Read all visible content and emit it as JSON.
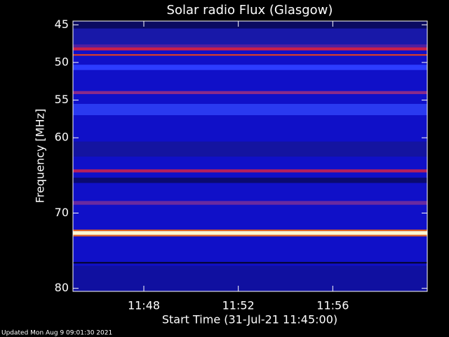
{
  "chart_data": {
    "type": "spectrogram",
    "title": "Solar radio Flux (Glasgow)",
    "ylabel": "Frequency [MHz]",
    "xlabel": "Start Time (31-Jul-21 11:45:00)",
    "footnote": "Updated Mon Aug  9 09:01:30 2021",
    "background_color": "#1010c8",
    "xlim": [
      0,
      15
    ],
    "xticks": [
      {
        "value": 3,
        "label": "11:48"
      },
      {
        "value": 7,
        "label": "11:52"
      },
      {
        "value": 11,
        "label": "11:56"
      }
    ],
    "ylim": [
      44.5,
      80.4
    ],
    "yticks": [
      45,
      50,
      55,
      60,
      70,
      80
    ],
    "bands": [
      {
        "low": 44.5,
        "high": 45.5,
        "color": "#0a0a60"
      },
      {
        "low": 45.5,
        "high": 47.6,
        "color": "#1818a8"
      },
      {
        "low": 47.6,
        "high": 48.0,
        "color": "#5020a0"
      },
      {
        "low": 48.0,
        "high": 48.4,
        "color": "#c8204a"
      },
      {
        "low": 48.9,
        "high": 49.1,
        "color": "#e04020"
      },
      {
        "low": 50.3,
        "high": 51.0,
        "color": "#2c3cff"
      },
      {
        "low": 53.8,
        "high": 54.2,
        "color": "#8a2a8a"
      },
      {
        "low": 55.5,
        "high": 57.0,
        "color": "#2a3af0"
      },
      {
        "low": 60.5,
        "high": 62.5,
        "color": "#1414a0"
      },
      {
        "low": 64.2,
        "high": 64.6,
        "color": "#b8205a"
      },
      {
        "low": 65.3,
        "high": 66.0,
        "color": "#0a0a70"
      },
      {
        "low": 68.4,
        "high": 68.9,
        "color": "#6a2aa0"
      },
      {
        "low": 72.2,
        "high": 72.4,
        "color": "#e06020"
      },
      {
        "low": 72.4,
        "high": 72.9,
        "color": "#fff8d0"
      },
      {
        "low": 72.9,
        "high": 73.1,
        "color": "#e06020"
      },
      {
        "low": 76.5,
        "high": 76.7,
        "color": "#050530"
      },
      {
        "low": 77.0,
        "high": 80.4,
        "color": "#1010a0"
      }
    ]
  }
}
